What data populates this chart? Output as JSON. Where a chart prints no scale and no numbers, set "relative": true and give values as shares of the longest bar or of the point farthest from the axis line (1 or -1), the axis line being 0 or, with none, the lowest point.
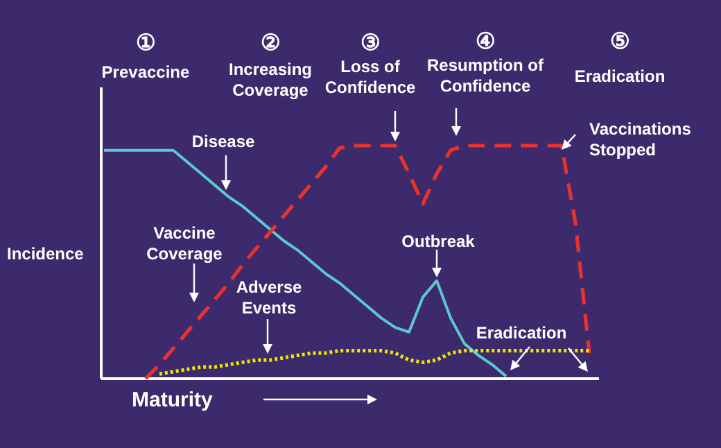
{
  "chart_data": {
    "type": "line",
    "relative": true,
    "legend": false,
    "xlabel": "Maturity",
    "ylabel": "Incidence",
    "categories": [
      null,
      null,
      null,
      null,
      null,
      null,
      null,
      null,
      null,
      null,
      null,
      null,
      null,
      null,
      null,
      null,
      null,
      null,
      null,
      null,
      null,
      null,
      null,
      null,
      null,
      null,
      null,
      null,
      null,
      null,
      null,
      null,
      null,
      null,
      null,
      null
    ],
    "series": [
      {
        "name": "Disease",
        "color": "#5cc8cf",
        "line_style": "solid",
        "values": [
          0.98,
          0.98,
          0.98,
          0.98,
          0.98,
          0.98,
          0.93,
          0.88,
          0.83,
          0.78,
          0.74,
          0.69,
          0.64,
          0.59,
          0.55,
          0.5,
          0.45,
          0.41,
          0.36,
          0.31,
          0.26,
          0.22,
          0.2,
          0.35,
          0.42,
          0.26,
          0.15,
          0.1,
          0.06,
          0.01,
          null,
          null,
          null,
          null,
          null,
          null
        ]
      },
      {
        "name": "Vaccine Coverage",
        "color": "#e8322e",
        "line_style": "dashed",
        "values": [
          null,
          null,
          null,
          0,
          0.06,
          0.13,
          0.2,
          0.27,
          0.34,
          0.41,
          0.49,
          0.56,
          0.63,
          0.7,
          0.77,
          0.84,
          0.91,
          0.99,
          1,
          1,
          1,
          1,
          0.88,
          0.75,
          0.88,
          0.98,
          1,
          1,
          1,
          1,
          1,
          1,
          1,
          1,
          0.67,
          0.11
        ]
      },
      {
        "name": "Adverse Events",
        "color": "#f2e400",
        "line_style": "dotted",
        "values": [
          null,
          null,
          null,
          null,
          0.02,
          0.03,
          0.04,
          0.05,
          0.05,
          0.06,
          0.07,
          0.08,
          0.08,
          0.09,
          0.1,
          0.11,
          0.11,
          0.12,
          0.12,
          0.12,
          0.12,
          0.11,
          0.08,
          0.07,
          0.08,
          0.11,
          0.12,
          0.12,
          0.12,
          0.12,
          0.12,
          0.12,
          0.12,
          0.12,
          0.12,
          0.12
        ]
      }
    ],
    "annotations": [
      "①\nPrevaccine",
      "②\nIncreasing\nCoverage",
      "③\nLoss of\nConfidence",
      "④\nResumption of\nConfidence",
      "⑤\nEradication",
      "Outbreak",
      "Eradication",
      "Vaccinations\nStopped"
    ]
  }
}
